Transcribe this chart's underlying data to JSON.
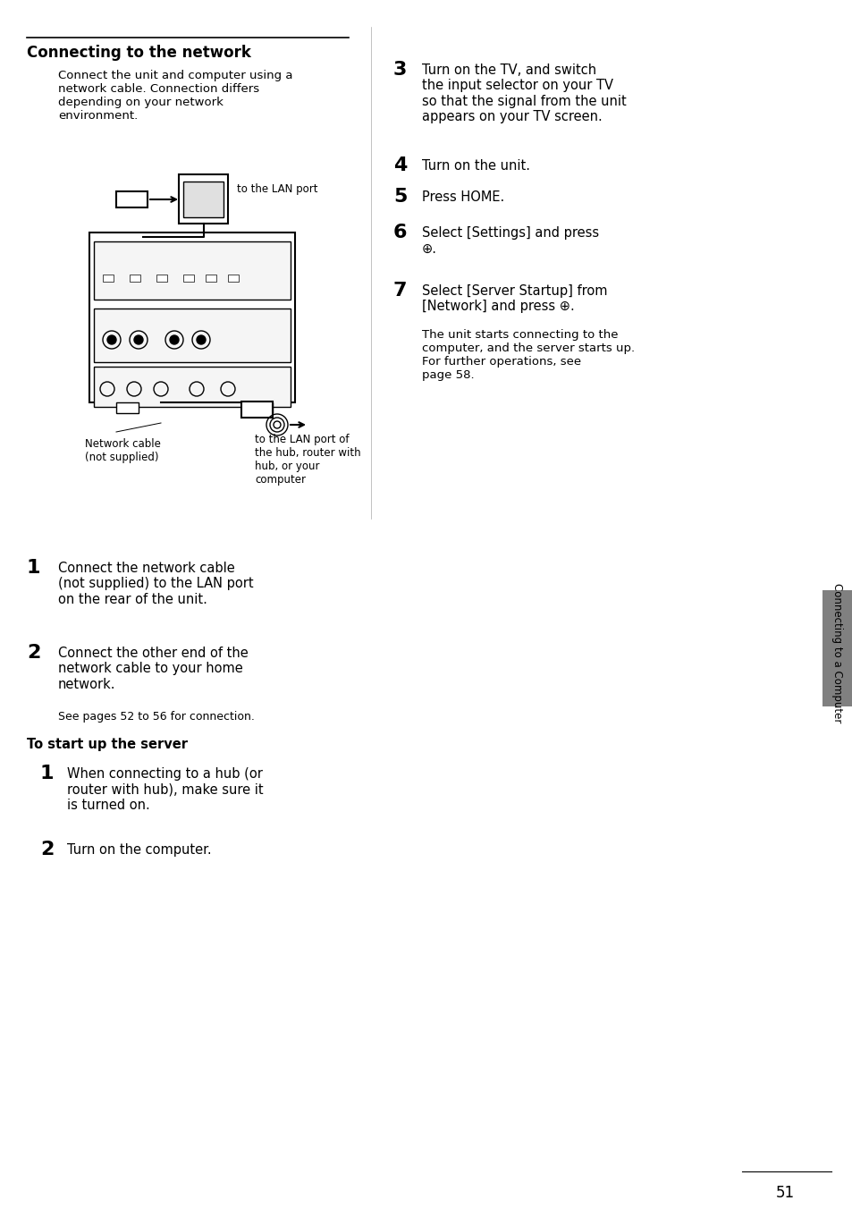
{
  "bg_color": "#ffffff",
  "page_number": "51",
  "title": "Connecting to the network",
  "title_intro": "Connect the unit and computer using a\nnetwork cable. Connection differs\ndepending on your network\nenvironment.",
  "step1_num": "1",
  "step1_text": "Connect the network cable\n(not supplied) to the LAN port\non the rear of the unit.",
  "step2_num": "2",
  "step2_text": "Connect the other end of the\nnetwork cable to your home\nnetwork.",
  "step2_sub": "See pages 52 to 56 for connection.",
  "server_title": "To start up the server",
  "server1_num": "1",
  "server1_text": "When connecting to a hub (or\nrouter with hub), make sure it\nis turned on.",
  "server2_num": "2",
  "server2_text": "Turn on the computer.",
  "right_step3_num": "3",
  "right_step3_text": "Turn on the TV, and switch\nthe input selector on your TV\nso that the signal from the unit\nappears on your TV screen.",
  "right_step4_num": "4",
  "right_step4_text": "Turn on the unit.",
  "right_step5_num": "5",
  "right_step5_text": "Press HOME.",
  "right_step6_num": "6",
  "right_step6_text": "Select [Settings] and press\n⊕.",
  "right_step7_num": "7",
  "right_step7_text": "Select [Server Startup] from\n[Network] and press ⊕.",
  "right_step7_sub": "The unit starts connecting to the\ncomputer, and the server starts up.\nFor further operations, see\npage 58.",
  "sidebar_text": "Connecting to a Computer",
  "label_lan": "to the LAN port",
  "label_cable": "Network cable\n(not supplied)",
  "label_bottom": "to the LAN port of\nthe hub, router with\nhub, or your\ncomputer"
}
